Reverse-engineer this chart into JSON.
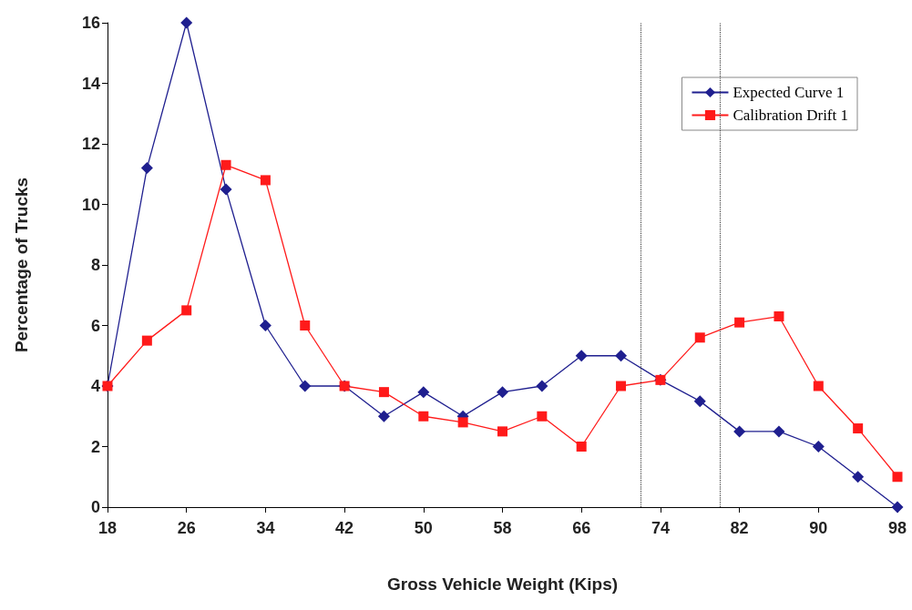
{
  "chart_data": {
    "type": "line",
    "xlabel": "Gross Vehicle Weight (Kips)",
    "ylabel": "Percentage of Trucks",
    "x": [
      18,
      22,
      26,
      30,
      34,
      38,
      42,
      46,
      50,
      54,
      58,
      62,
      66,
      70,
      74,
      78,
      82,
      86,
      90,
      94,
      98
    ],
    "series": [
      {
        "name": "Expected Curve 1",
        "color": "#1f1f8f",
        "marker": "diamond",
        "values": [
          4,
          11.2,
          16,
          10.5,
          6,
          4,
          4,
          3,
          3.8,
          3,
          3.8,
          4,
          5,
          5,
          4.2,
          3.5,
          2.5,
          2.5,
          2,
          1,
          0
        ]
      },
      {
        "name": "Calibration Drift 1",
        "color": "#ff1a1a",
        "marker": "square",
        "values": [
          4,
          5.5,
          6.5,
          11.3,
          10.8,
          6,
          4,
          3.8,
          3,
          2.8,
          2.5,
          3,
          2,
          4,
          4.2,
          5.6,
          6.1,
          6.3,
          4,
          2.6,
          1
        ]
      }
    ],
    "xlim": [
      18,
      98
    ],
    "xticks": [
      18,
      26,
      34,
      42,
      50,
      58,
      66,
      74,
      82,
      90,
      98
    ],
    "ylim": [
      0,
      16
    ],
    "yticks": [
      0,
      2,
      4,
      6,
      8,
      10,
      12,
      14,
      16
    ],
    "ref_lines": [
      {
        "axis": "x",
        "value": 72,
        "line_style": "dotted",
        "color": "#444444"
      },
      {
        "axis": "x",
        "value": 80,
        "line_style": "dotted",
        "color": "#444444"
      }
    ],
    "grid": false,
    "legend": "top right",
    "line_style": "solid"
  }
}
